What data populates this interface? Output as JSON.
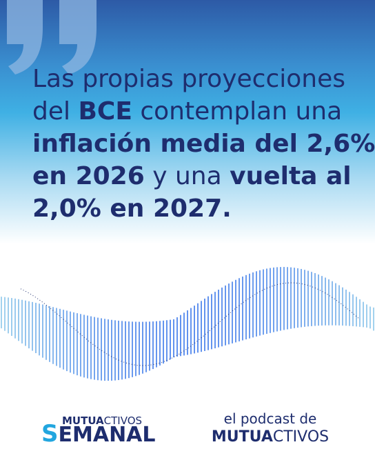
{
  "quote": {
    "lines": [
      [
        {
          "text": "Las propias proyecciones",
          "bold": false
        }
      ],
      [
        {
          "text": "del ",
          "bold": false
        },
        {
          "text": "BCE",
          "bold": true
        },
        {
          "text": " contemplan una",
          "bold": false
        }
      ],
      [
        {
          "text": "inflación media del 2,6%",
          "bold": true
        }
      ],
      [
        {
          "text": "en 2026",
          "bold": true
        },
        {
          "text": " y una ",
          "bold": false
        },
        {
          "text": "vuelta al",
          "bold": true
        }
      ],
      [
        {
          "text": "2,0% en 2027.",
          "bold": true
        }
      ]
    ]
  },
  "logo_left": {
    "top_bold": "MUTUA",
    "top_light": "CTIVOS",
    "initial": "S",
    "rest": "EMANAL"
  },
  "logo_right": {
    "top": "el podcast de",
    "bottom_bold": "MUTUA",
    "bottom_light": "CTIVOS"
  }
}
